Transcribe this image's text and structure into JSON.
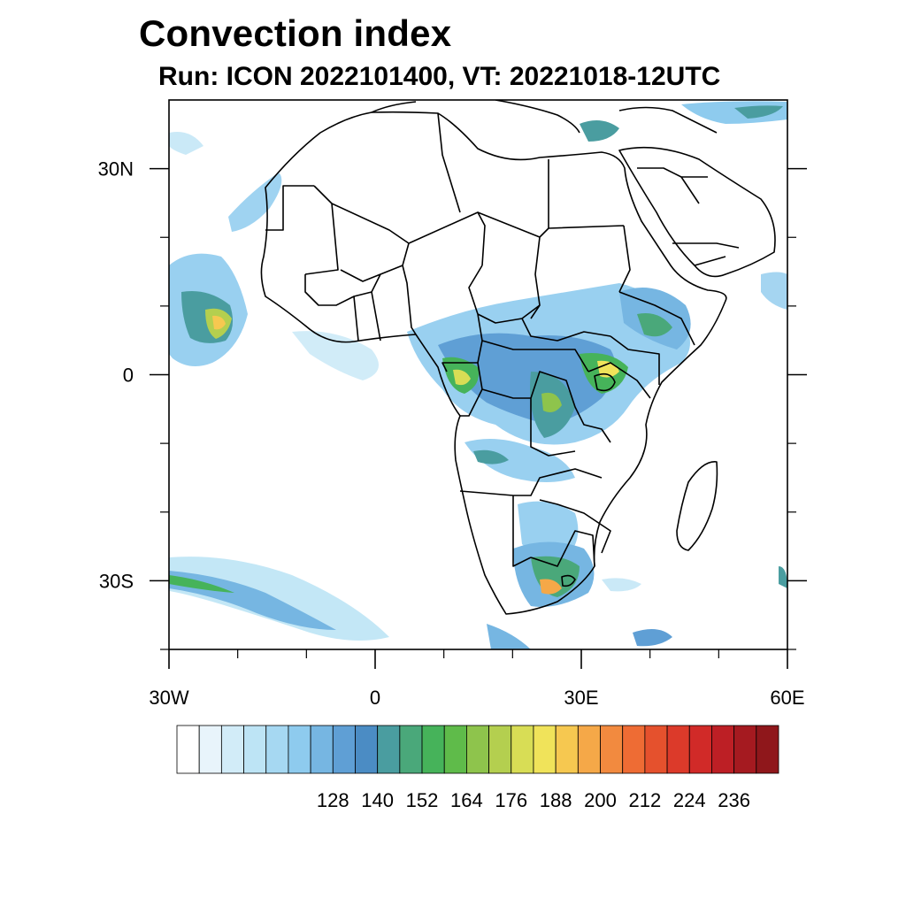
{
  "header": {
    "title": "Convection index",
    "subtitle": "Run: ICON 2022101400,  VT: 20221018-12UTC"
  },
  "map": {
    "lon_range": [
      -30,
      60
    ],
    "lat_range": [
      -40,
      40
    ],
    "lon_ticks": [
      {
        "value": -30,
        "label": "30W"
      },
      {
        "value": 0,
        "label": "0"
      },
      {
        "value": 30,
        "label": "30E"
      },
      {
        "value": 60,
        "label": "60E"
      }
    ],
    "lat_ticks": [
      {
        "value": 30,
        "label": "30N"
      },
      {
        "value": 0,
        "label": "0"
      },
      {
        "value": -30,
        "label": "30S"
      }
    ],
    "minor_lon": [
      -20,
      -10,
      10,
      20,
      40,
      50
    ],
    "minor_lat": [
      20,
      10,
      -10,
      -20,
      -40
    ]
  },
  "colorbar": {
    "labels": [
      {
        "index": 7,
        "text": "128"
      },
      {
        "index": 9,
        "text": "140"
      },
      {
        "index": 11,
        "text": "152"
      },
      {
        "index": 13,
        "text": "164"
      },
      {
        "index": 15,
        "text": "176"
      },
      {
        "index": 17,
        "text": "188"
      },
      {
        "index": 19,
        "text": "200"
      },
      {
        "index": 21,
        "text": "212"
      },
      {
        "index": 23,
        "text": "224"
      },
      {
        "index": 25,
        "text": "236"
      }
    ],
    "colors": [
      "#ffffff",
      "#e8f4fb",
      "#d2ecf8",
      "#bde4f5",
      "#a6d8f2",
      "#8ecbee",
      "#76b6e2",
      "#5f9fd5",
      "#4b8cc4",
      "#4a9da0",
      "#4aa87a",
      "#46b35a",
      "#5fbb4a",
      "#8ec44c",
      "#b4cf4f",
      "#d8dd55",
      "#f0e35a",
      "#f6c850",
      "#f5a848",
      "#f28a3f",
      "#ee6c34",
      "#e5512d",
      "#dc3a2a",
      "#d12a28",
      "#bd1f25",
      "#a51a20",
      "#8f171b"
    ]
  },
  "legend_colors": {
    "light": "#bde4f5",
    "mid": "#76b6e2",
    "teal": "#4a9da0",
    "green": "#46b35a",
    "yellow": "#f0e35a",
    "orange": "#f5a848"
  }
}
